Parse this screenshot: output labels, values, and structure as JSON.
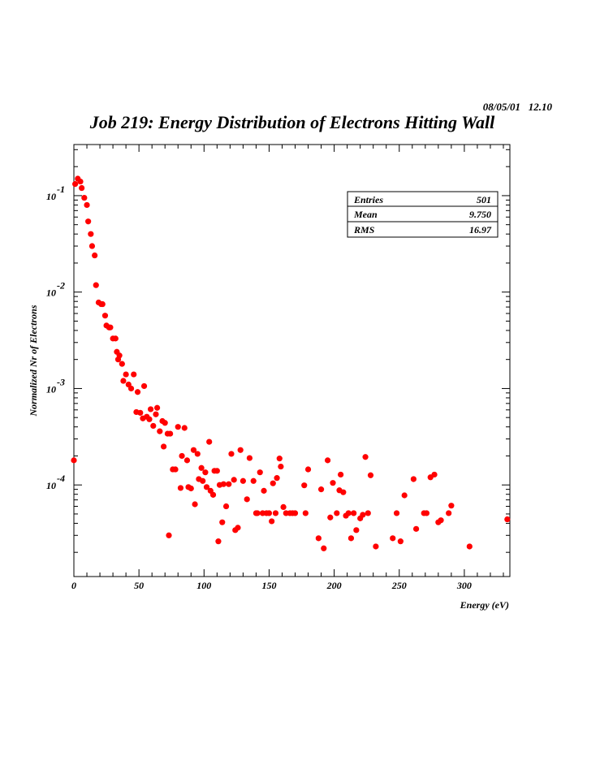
{
  "header": {
    "date": "08/05/01",
    "time": "12.10",
    "title": "Job 219: Energy Distribution of Electrons Hitting Wall"
  },
  "stats": {
    "rows": [
      {
        "label": "Entries",
        "value": "501"
      },
      {
        "label": "Mean",
        "value": "9.750"
      },
      {
        "label": "RMS",
        "value": "16.97"
      }
    ]
  },
  "chart_data": {
    "type": "scatter",
    "title": "Job 219: Energy Distribution of Electrons Hitting Wall",
    "xlabel": "Energy (eV)",
    "ylabel": "Normalized Nr of Electrons",
    "xlim": [
      0,
      335
    ],
    "ylim_log10": [
      -4.95,
      -0.47
    ],
    "yscale": "log",
    "x_ticks": [
      0,
      50,
      100,
      150,
      200,
      250,
      300
    ],
    "y_ticks": [
      {
        "exp": -1,
        "base": "10",
        "sup": "-1"
      },
      {
        "exp": -2,
        "base": "10",
        "sup": "-2"
      },
      {
        "exp": -3,
        "base": "10",
        "sup": "-3"
      },
      {
        "exp": -4,
        "base": "10",
        "sup": "-4"
      }
    ],
    "marker_color": "#ff0000",
    "points": [
      [
        0,
        0.00018
      ],
      [
        1,
        0.132
      ],
      [
        3,
        0.15
      ],
      [
        5,
        0.14
      ],
      [
        6,
        0.12
      ],
      [
        8,
        0.095
      ],
      [
        10,
        0.08
      ],
      [
        11,
        0.054
      ],
      [
        13,
        0.04
      ],
      [
        14,
        0.03
      ],
      [
        16,
        0.024
      ],
      [
        17,
        0.0118
      ],
      [
        19,
        0.0078
      ],
      [
        21,
        0.0075
      ],
      [
        22,
        0.0075
      ],
      [
        24,
        0.0057
      ],
      [
        25,
        0.0045
      ],
      [
        27,
        0.0043
      ],
      [
        28,
        0.0043
      ],
      [
        30,
        0.0033
      ],
      [
        32,
        0.0033
      ],
      [
        33,
        0.0024
      ],
      [
        34,
        0.002
      ],
      [
        35,
        0.0022
      ],
      [
        37,
        0.0018
      ],
      [
        38,
        0.0012
      ],
      [
        40,
        0.0014
      ],
      [
        42,
        0.0011
      ],
      [
        44,
        0.001
      ],
      [
        46,
        0.0014
      ],
      [
        48,
        0.00057
      ],
      [
        49,
        0.00092
      ],
      [
        51,
        0.00056
      ],
      [
        53,
        0.00049
      ],
      [
        54,
        0.00106
      ],
      [
        56,
        0.00051
      ],
      [
        58,
        0.00048
      ],
      [
        59,
        0.00061
      ],
      [
        61,
        0.00041
      ],
      [
        63,
        0.00054
      ],
      [
        64,
        0.00063
      ],
      [
        66,
        0.00036
      ],
      [
        68,
        0.00046
      ],
      [
        70,
        0.00044
      ],
      [
        69,
        0.00025
      ],
      [
        72,
        0.00034
      ],
      [
        74,
        0.00034
      ],
      [
        73,
        3e-05
      ],
      [
        76,
        0.000145
      ],
      [
        78,
        0.000145
      ],
      [
        80,
        0.0004
      ],
      [
        82,
        9.3e-05
      ],
      [
        83,
        0.0002
      ],
      [
        85,
        0.00039
      ],
      [
        87,
        0.00018
      ],
      [
        88,
        9.5e-05
      ],
      [
        90,
        9.2e-05
      ],
      [
        92,
        0.00023
      ],
      [
        93,
        6.3e-05
      ],
      [
        95,
        0.00021
      ],
      [
        96,
        0.000115
      ],
      [
        98,
        0.00015
      ],
      [
        99,
        0.00011
      ],
      [
        101,
        0.000135
      ],
      [
        102,
        9.5e-05
      ],
      [
        104,
        0.00028
      ],
      [
        105,
        8.7e-05
      ],
      [
        107,
        7.9e-05
      ],
      [
        108,
        0.00014
      ],
      [
        110,
        0.00014
      ],
      [
        111,
        2.6e-05
      ],
      [
        112,
        0.0001
      ],
      [
        114,
        4.1e-05
      ],
      [
        115,
        0.000102
      ],
      [
        117,
        6e-05
      ],
      [
        119,
        0.000102
      ],
      [
        121,
        0.00021
      ],
      [
        123,
        0.000113
      ],
      [
        124,
        3.4e-05
      ],
      [
        126,
        3.6e-05
      ],
      [
        128,
        0.00023
      ],
      [
        130,
        0.00011
      ],
      [
        133,
        7.1e-05
      ],
      [
        135,
        0.00019
      ],
      [
        138,
        0.00011
      ],
      [
        140,
        5.1e-05
      ],
      [
        141,
        5.1e-05
      ],
      [
        143,
        0.000135
      ],
      [
        145,
        5.1e-05
      ],
      [
        146,
        8.7e-05
      ],
      [
        148,
        5.1e-05
      ],
      [
        150,
        5.1e-05
      ],
      [
        152,
        4.2e-05
      ],
      [
        153,
        0.000104
      ],
      [
        155,
        5.1e-05
      ],
      [
        156,
        0.000118
      ],
      [
        158,
        0.000188
      ],
      [
        159,
        0.000155
      ],
      [
        161,
        5.9e-05
      ],
      [
        163,
        5.1e-05
      ],
      [
        166,
        5.1e-05
      ],
      [
        168,
        5.1e-05
      ],
      [
        170,
        5.1e-05
      ],
      [
        177,
        9.9e-05
      ],
      [
        178,
        5.1e-05
      ],
      [
        180,
        0.000145
      ],
      [
        188,
        2.8e-05
      ],
      [
        190,
        9e-05
      ],
      [
        192,
        2.2e-05
      ],
      [
        195,
        0.00018
      ],
      [
        197,
        4.6e-05
      ],
      [
        199,
        0.000105
      ],
      [
        202,
        5.1e-05
      ],
      [
        204,
        8.8e-05
      ],
      [
        205,
        0.000128
      ],
      [
        207,
        8.4e-05
      ],
      [
        209,
        4.8e-05
      ],
      [
        211,
        5.1e-05
      ],
      [
        213,
        2.8e-05
      ],
      [
        215,
        5.1e-05
      ],
      [
        217,
        3.4e-05
      ],
      [
        220,
        4.5e-05
      ],
      [
        222,
        4.9e-05
      ],
      [
        224,
        0.000195
      ],
      [
        226,
        5.1e-05
      ],
      [
        228,
        0.000126
      ],
      [
        232,
        2.3e-05
      ],
      [
        245,
        2.8e-05
      ],
      [
        248,
        5.1e-05
      ],
      [
        251,
        2.6e-05
      ],
      [
        254,
        7.8e-05
      ],
      [
        261,
        0.000115
      ],
      [
        263,
        3.5e-05
      ],
      [
        269,
        5.1e-05
      ],
      [
        271,
        5.1e-05
      ],
      [
        274,
        0.00012
      ],
      [
        277,
        0.000128
      ],
      [
        280,
        4.1e-05
      ],
      [
        282,
        4.3e-05
      ],
      [
        288,
        5.1e-05
      ],
      [
        290,
        6.1e-05
      ],
      [
        304,
        2.3e-05
      ],
      [
        333,
        4.4e-05
      ]
    ]
  }
}
